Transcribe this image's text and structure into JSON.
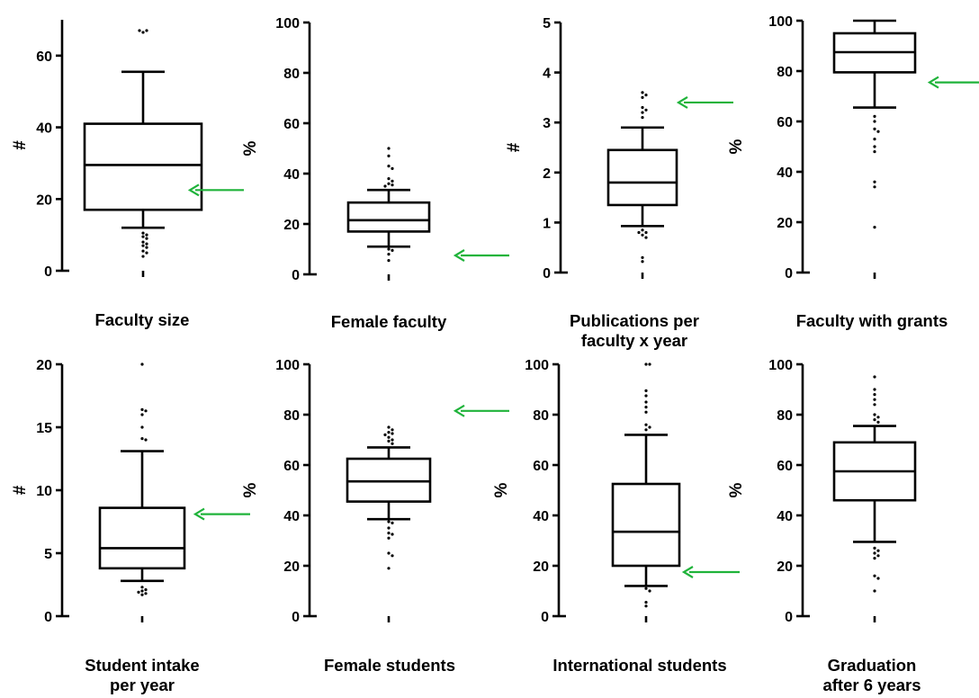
{
  "colors": {
    "ink": "#000000",
    "arrow": "#1fb33a",
    "background": "#ffffff"
  },
  "chart_data": [
    {
      "type": "box",
      "title_lines": [
        "Faculty size"
      ],
      "ylabel": "#",
      "ylim": [
        0,
        70
      ],
      "yticks": [
        0,
        20,
        40,
        60
      ],
      "box": {
        "whisker_low": 12,
        "q1": 17,
        "median": 29.5,
        "q3": 41,
        "whisker_high": 55.5
      },
      "outliers": [
        66.5,
        67,
        67,
        10.5,
        10,
        9.5,
        9,
        8,
        7.5,
        7,
        6.5,
        5.5,
        5,
        4
      ],
      "arrow": {
        "value": 22.5,
        "direction": "left"
      }
    },
    {
      "type": "box",
      "title_lines": [
        "Female faculty"
      ],
      "ylabel": "%",
      "ylim": [
        0,
        100
      ],
      "yticks": [
        0,
        20,
        40,
        60,
        80,
        100
      ],
      "box": {
        "whisker_low": 11,
        "q1": 17,
        "median": 21.5,
        "q3": 28.5,
        "whisker_high": 33.5
      },
      "outliers": [
        50,
        47,
        43,
        42,
        38,
        37,
        36,
        35.5,
        35,
        10,
        9.5,
        8,
        5.5
      ],
      "arrow": {
        "value": 7.5,
        "direction": "left"
      }
    },
    {
      "type": "box",
      "title_lines": [
        "Publications per",
        "faculty x year"
      ],
      "ylabel": "#",
      "ylim": [
        0,
        5
      ],
      "yticks": [
        0,
        1,
        2,
        3,
        4,
        5
      ],
      "box": {
        "whisker_low": 0.93,
        "q1": 1.35,
        "median": 1.8,
        "q3": 2.45,
        "whisker_high": 2.9
      },
      "outliers": [
        3.6,
        3.55,
        3.5,
        3.3,
        3.25,
        3.2,
        3.1,
        0.85,
        0.8,
        0.8,
        0.75,
        0.7,
        0.3,
        0.22
      ],
      "arrow": {
        "value": 3.4,
        "direction": "left"
      }
    },
    {
      "type": "box",
      "title_lines": [
        "Faculty with grants"
      ],
      "ylabel": "%",
      "ylim": [
        0,
        100
      ],
      "yticks": [
        0,
        20,
        40,
        60,
        80,
        100
      ],
      "box": {
        "whisker_low": 65.5,
        "q1": 79.5,
        "median": 87.5,
        "q3": 95,
        "whisker_high": 100
      },
      "outliers": [
        62,
        60,
        57,
        56,
        53,
        50,
        48,
        36,
        34,
        18
      ],
      "arrow": {
        "value": 75.5,
        "direction": "left"
      }
    },
    {
      "type": "box",
      "title_lines": [
        "Student intake",
        "per year"
      ],
      "ylabel": "#",
      "ylim": [
        0,
        20
      ],
      "yticks": [
        0,
        5,
        10,
        15,
        20
      ],
      "box": {
        "whisker_low": 2.8,
        "q1": 3.8,
        "median": 5.4,
        "q3": 8.6,
        "whisker_high": 13.1
      },
      "outliers": [
        20,
        16.4,
        16.3,
        16,
        15,
        14.1,
        14,
        2.3,
        2.1,
        2,
        1.9,
        1.8,
        1.7
      ],
      "arrow": {
        "value": 8.1,
        "direction": "left"
      }
    },
    {
      "type": "box",
      "title_lines": [
        "Female students"
      ],
      "ylabel": "%",
      "ylim": [
        0,
        100
      ],
      "yticks": [
        0,
        20,
        40,
        60,
        80,
        100
      ],
      "box": {
        "whisker_low": 38.5,
        "q1": 45.5,
        "median": 53.5,
        "q3": 62.5,
        "whisker_high": 67
      },
      "outliers": [
        75,
        74,
        73,
        72.5,
        72,
        71,
        70,
        69.5,
        68.5,
        37.5,
        37,
        35,
        33,
        32.5,
        31,
        25,
        24,
        19
      ],
      "arrow": {
        "value": 81.5,
        "direction": "left"
      }
    },
    {
      "type": "box",
      "title_lines": [
        "International students"
      ],
      "ylabel": "%",
      "ylim": [
        0,
        100
      ],
      "yticks": [
        0,
        20,
        40,
        60,
        80,
        100
      ],
      "box": {
        "whisker_low": 12,
        "q1": 20,
        "median": 33.5,
        "q3": 52.5,
        "whisker_high": 72
      },
      "outliers": [
        100,
        100,
        89.5,
        87.5,
        85,
        83,
        81,
        76,
        75,
        74,
        11,
        10,
        5.5,
        4
      ],
      "arrow": {
        "value": 17.5,
        "direction": "left"
      }
    },
    {
      "type": "box",
      "title_lines": [
        "Graduation",
        "after 6 years"
      ],
      "ylabel": "%",
      "ylim": [
        0,
        100
      ],
      "yticks": [
        0,
        20,
        40,
        60,
        80,
        100
      ],
      "box": {
        "whisker_low": 29.5,
        "q1": 46,
        "median": 57.5,
        "q3": 69,
        "whisker_high": 75.5
      },
      "outliers": [
        95,
        90,
        88,
        86,
        84,
        80,
        79,
        78,
        77,
        27,
        26,
        25,
        24,
        23,
        16,
        15,
        10
      ],
      "arrow": null
    }
  ]
}
